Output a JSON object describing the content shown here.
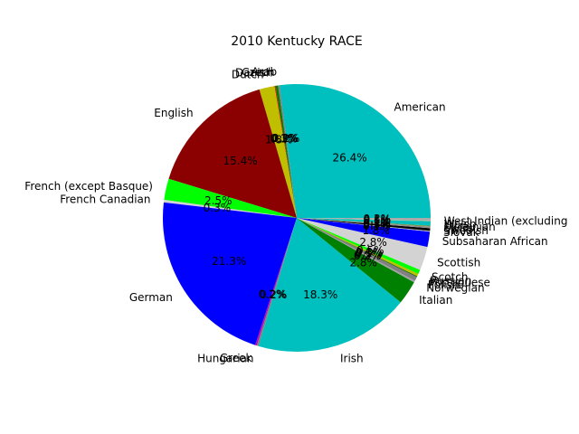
{
  "chart_data": {
    "type": "pie",
    "title": "2010 Kentucky RACE",
    "start_angle_deg": 0,
    "direction": "counterclockwise",
    "slices": [
      {
        "label": "American",
        "value": 26.4,
        "pct_label": "26.4%",
        "color": "#00bfbf"
      },
      {
        "label": "Arab",
        "value": 0.2,
        "pct_label": "0.2%",
        "color": "#808080"
      },
      {
        "label": "Czech",
        "value": 0.3,
        "pct_label": "0.3%",
        "color": "#008000"
      },
      {
        "label": "Danish",
        "value": 0.1,
        "pct_label": "0.1%",
        "color": "#ff0000"
      },
      {
        "label": "Dutch",
        "value": 1.8,
        "pct_label": "1.8%",
        "color": "#bfbf00"
      },
      {
        "label": "English",
        "value": 15.4,
        "pct_label": "15.4%",
        "color": "#8b0000"
      },
      {
        "label": "French (except Basque)",
        "value": 2.5,
        "pct_label": "2.5%",
        "color": "#00ff00"
      },
      {
        "label": "French Canadian",
        "value": 0.3,
        "pct_label": "0.3%",
        "color": "#d3d3d3"
      },
      {
        "label": "German",
        "value": 21.3,
        "pct_label": "21.3%",
        "color": "#0000ff"
      },
      {
        "label": "Greek",
        "value": 0.2,
        "pct_label": "0.2%",
        "color": "#bf00bf"
      },
      {
        "label": "Hungarian",
        "value": 0.2,
        "pct_label": "0.2%",
        "color": "#808080"
      },
      {
        "label": "Irish",
        "value": 18.3,
        "pct_label": "18.3%",
        "color": "#00bfbf"
      },
      {
        "label": "Italian",
        "value": 2.8,
        "pct_label": "2.8%",
        "color": "#008000"
      },
      {
        "label": "Norwegian",
        "value": 0.2,
        "pct_label": "0.2%",
        "color": "#a0a0a0"
      },
      {
        "label": "Polish",
        "value": 0.5,
        "pct_label": "0.5%",
        "color": "#808080"
      },
      {
        "label": "Portuguese",
        "value": 0.1,
        "pct_label": "0.1%",
        "color": "#006400"
      },
      {
        "label": "Russian",
        "value": 0.3,
        "pct_label": "0.3%",
        "color": "#bfbf00"
      },
      {
        "label": "Scotch",
        "value": 0.5,
        "pct_label": "0.5%",
        "color": "#00ff00"
      },
      {
        "label": "Scottish",
        "value": 2.8,
        "pct_label": "2.8%",
        "color": "#d3d3d3"
      },
      {
        "label": "Subsaharan African",
        "value": 1.8,
        "pct_label": "1.8%",
        "color": "#0000ff"
      },
      {
        "label": "Slovak",
        "value": 0.1,
        "pct_label": "0.1%",
        "color": "#c0c0c0"
      },
      {
        "label": "Swedish",
        "value": 0.3,
        "pct_label": "0.3%",
        "color": "#000000"
      },
      {
        "label": "Swiss",
        "value": 0.2,
        "pct_label": "0.2%",
        "color": "#909090"
      },
      {
        "label": "Ukrainian",
        "value": 0.1,
        "pct_label": "0.1%",
        "color": "#6b8e23"
      },
      {
        "label": "Welsh",
        "value": 0.5,
        "pct_label": "0.5%",
        "color": "#00bfbf"
      },
      {
        "label": "West Indian (excluding",
        "value": 0.1,
        "pct_label": "0.1%",
        "color": "#8fbc8f"
      },
      {
        "label": "",
        "value": 0.3,
        "pct_label": "0.3%",
        "color": "#a9a9a9"
      }
    ]
  }
}
